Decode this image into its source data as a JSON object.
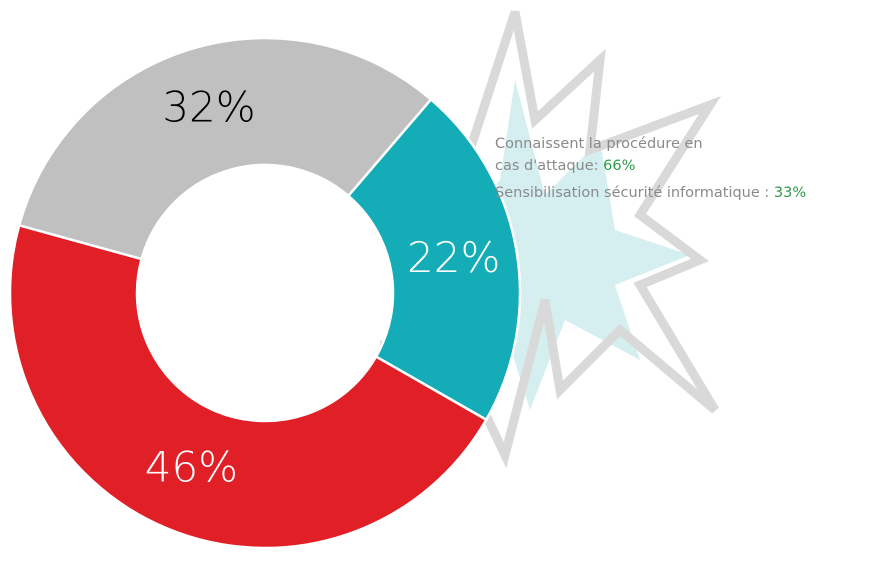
{
  "chart_data": {
    "type": "donut",
    "categories": [
      null,
      null,
      null
    ],
    "values": [
      22,
      46,
      32
    ],
    "value_labels": [
      "22%",
      "46%",
      "32%"
    ],
    "colors": [
      "#14adb7",
      "#e01f27",
      "#c0c0c0"
    ],
    "label_colors": [
      "#ffffff",
      "#ffffff",
      "#000000"
    ],
    "annotations": [
      {
        "label": [
          "Connaissent la procédure en",
          "cas d'attaque:"
        ],
        "value": "66%"
      },
      {
        "label": [
          "Sensibilisation sécurité informatique :"
        ],
        "value": "33%"
      }
    ]
  }
}
